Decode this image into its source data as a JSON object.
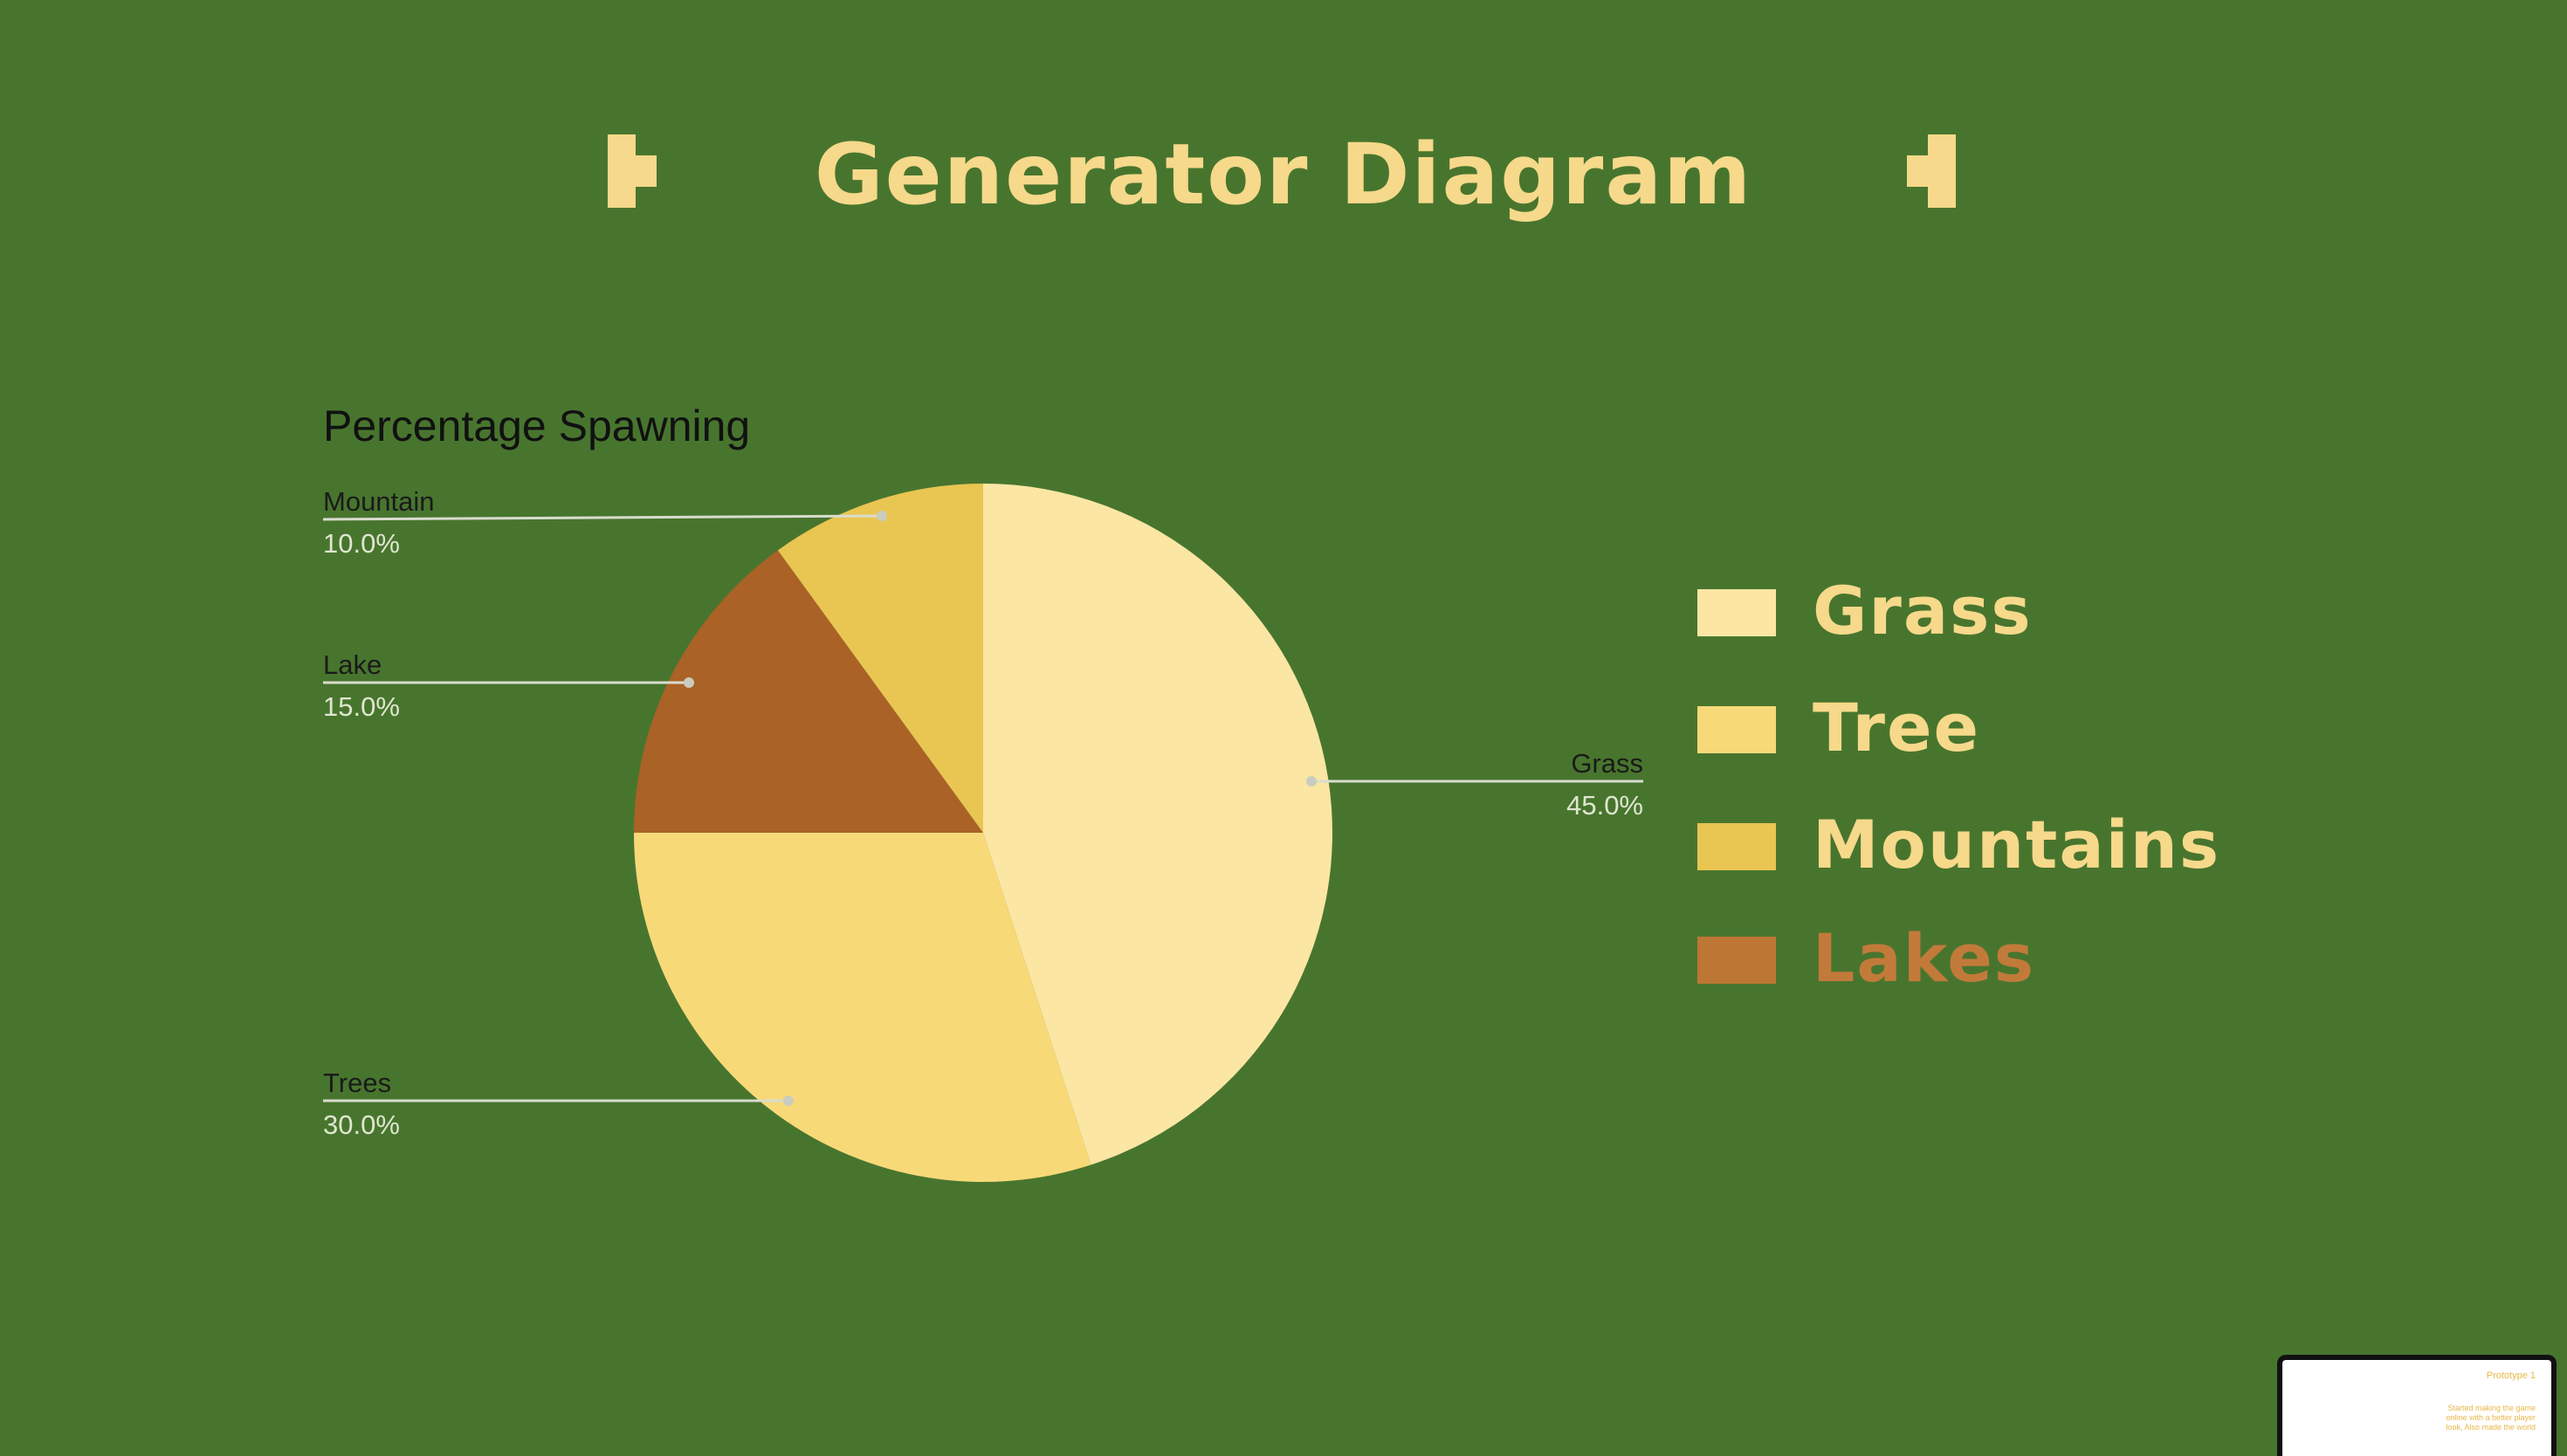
{
  "slide": {
    "title": "Generator Diagram"
  },
  "legend": {
    "items": [
      {
        "label": "Grass",
        "color": "#fbe6a4",
        "text_color": "#f6d98a"
      },
      {
        "label": "Tree",
        "color": "#f8d978",
        "text_color": "#f6d98a"
      },
      {
        "label": "Mountains",
        "color": "#e9c552",
        "text_color": "#f6d98a"
      },
      {
        "label": "Lakes",
        "color": "#bd7633",
        "text_color": "#c27a3a"
      }
    ]
  },
  "thumbnail": {
    "title": "Prototype 1",
    "text": "Started making the game online with a better player look, Also made the world"
  },
  "chart_data": {
    "type": "pie",
    "title": "Percentage Spawning",
    "slices": [
      {
        "label": "Grass",
        "value": 45.0,
        "percent_label": "45.0%",
        "color": "#fbe6a4"
      },
      {
        "label": "Trees",
        "value": 30.0,
        "percent_label": "30.0%",
        "color": "#f8d978"
      },
      {
        "label": "Lake",
        "value": 15.0,
        "percent_label": "15.0%",
        "color": "#aa6226"
      },
      {
        "label": "Mountain",
        "value": 10.0,
        "percent_label": "10.0%",
        "color": "#e9c552"
      }
    ],
    "start_angle_deg": 0,
    "direction": "clockwise",
    "label_color": "#1a1a1a",
    "percent_color": "#dfe6cf",
    "leader_color": "#d9dccf"
  }
}
